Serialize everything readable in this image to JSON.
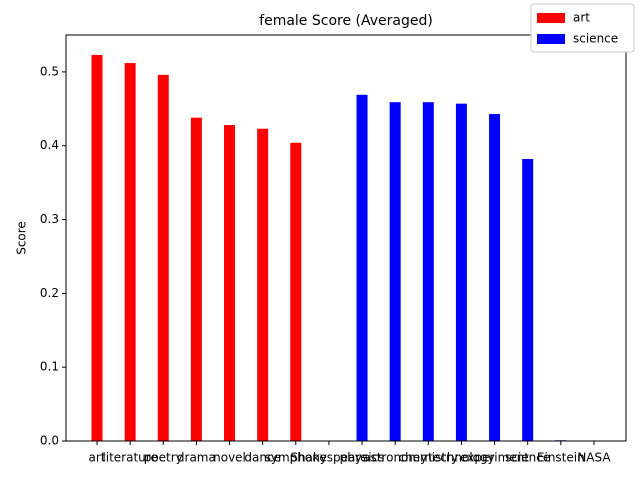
{
  "chart_data": {
    "type": "bar",
    "title": "female Score (Averaged)",
    "y_label": "Score",
    "categories": [
      "art",
      "literature",
      "poetry",
      "drama",
      "novel",
      "dance",
      "symphony",
      "Shakespeare",
      "physics",
      "astronomy",
      "chemistry",
      "technology",
      "experiment",
      "science",
      "Einstein",
      "NASA"
    ],
    "series": [
      {
        "name": "art",
        "color": "#ff0000",
        "values": [
          0.523,
          0.512,
          0.496,
          0.438,
          0.428,
          0.423,
          0.404,
          0,
          null,
          null,
          null,
          null,
          null,
          null,
          null,
          null
        ]
      },
      {
        "name": "science",
        "color": "#0000ff",
        "values": [
          null,
          null,
          null,
          null,
          null,
          null,
          null,
          null,
          0.469,
          0.459,
          0.459,
          0.457,
          0.443,
          0.382,
          0.001,
          0
        ]
      }
    ],
    "ylim": [
      0,
      0.55
    ],
    "yticks": [
      {
        "value": 0,
        "label": "0.0"
      },
      0.1,
      0.2,
      0.3,
      0.4,
      0.5
    ],
    "legend": "upper right"
  }
}
